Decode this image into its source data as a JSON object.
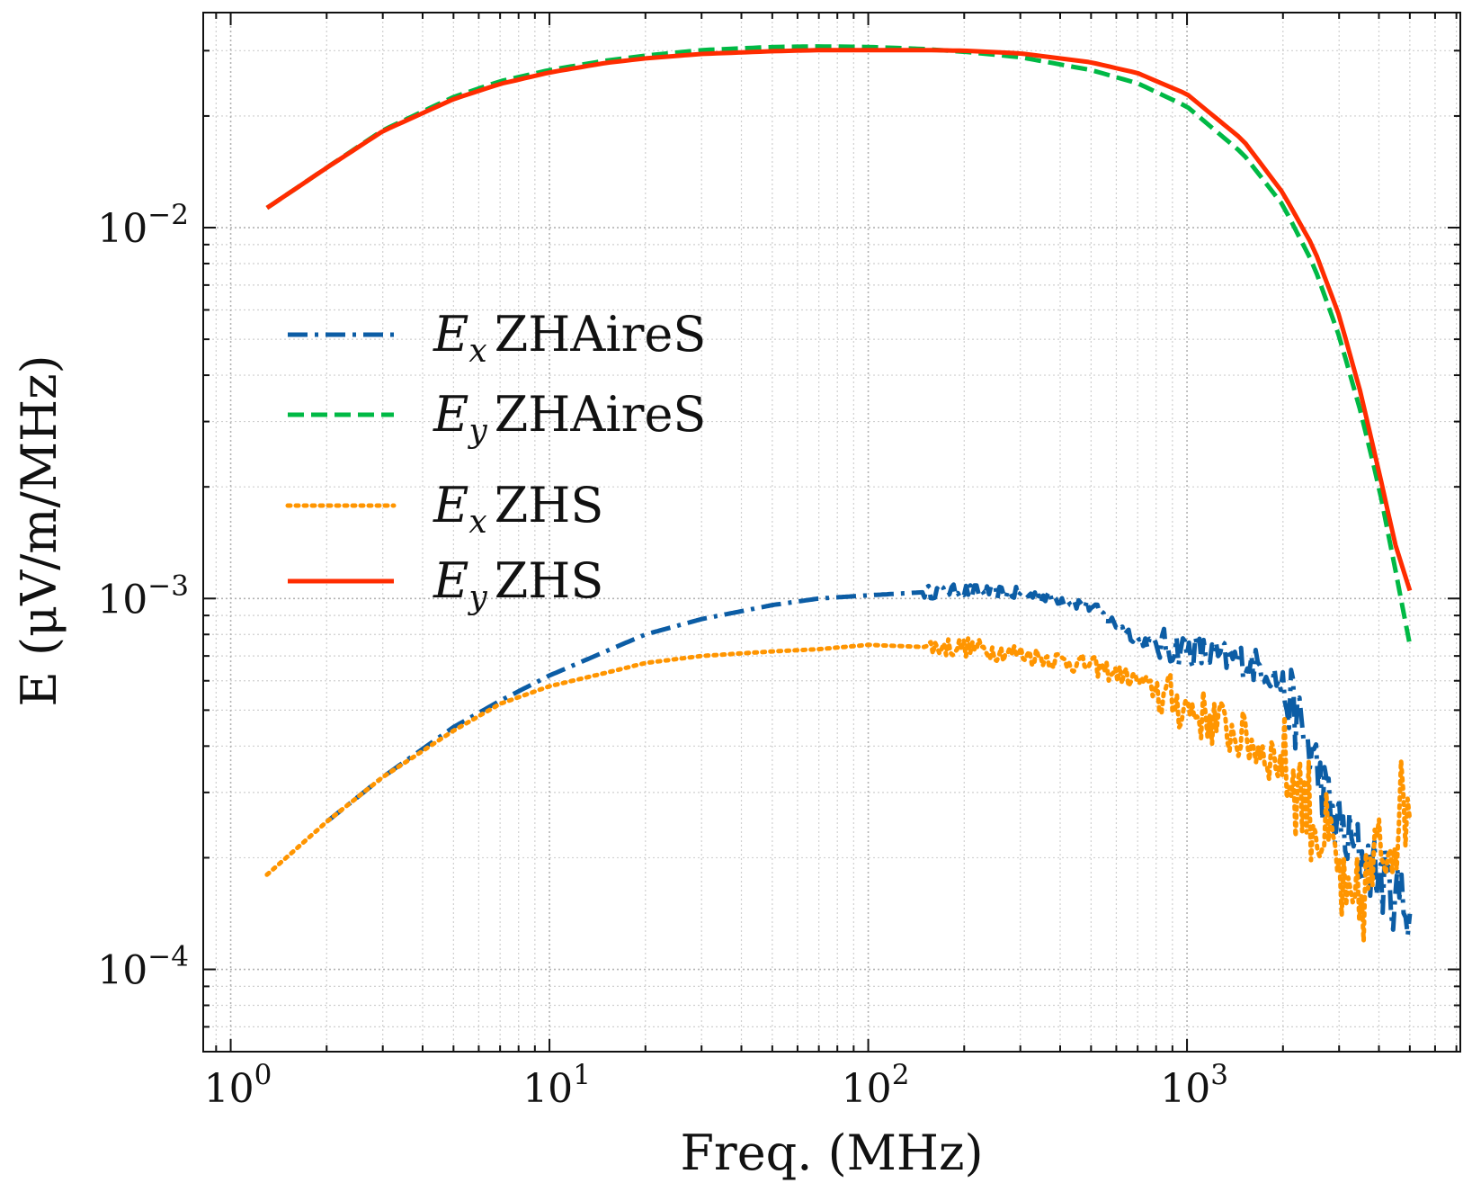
{
  "chart_data": {
    "type": "line",
    "title": "",
    "xlabel": "Freq. (MHz)",
    "ylabel": "E (μV/m/MHz)",
    "xscale": "log",
    "yscale": "log",
    "xlim": [
      0.82,
      7200
    ],
    "ylim": [
      6e-05,
      0.038
    ],
    "grid": true,
    "legend_position": "center-left",
    "x_ticks": [
      {
        "value": 1,
        "base": "10",
        "exp": "0"
      },
      {
        "value": 10,
        "base": "10",
        "exp": "1"
      },
      {
        "value": 100,
        "base": "10",
        "exp": "2"
      },
      {
        "value": 1000,
        "base": "10",
        "exp": "3"
      }
    ],
    "y_ticks": [
      {
        "value": 0.0001,
        "base": "10",
        "exp": "−4"
      },
      {
        "value": 0.001,
        "base": "10",
        "exp": "−3"
      },
      {
        "value": 0.01,
        "base": "10",
        "exp": "−2"
      }
    ],
    "series": [
      {
        "name": "Ex ZHAireS",
        "symbol": "E",
        "subscript": "x",
        "code": "ZHAireS",
        "color": "#0c5da5",
        "dash": "dashdot",
        "noise": 0.06,
        "x": [
          2,
          3,
          5,
          7,
          10,
          15,
          20,
          30,
          50,
          70,
          100,
          150,
          200,
          300,
          400,
          500,
          600,
          700,
          800,
          1000,
          1200,
          1500,
          1800,
          2000,
          2200,
          2500,
          2800,
          3200,
          3800,
          4400,
          5000
        ],
        "y": [
          0.00025,
          0.00033,
          0.00045,
          0.00053,
          0.00062,
          0.00072,
          0.0008,
          0.00088,
          0.00096,
          0.001,
          0.00102,
          0.00104,
          0.00105,
          0.00103,
          0.001,
          0.00095,
          0.00085,
          0.00078,
          0.00075,
          0.00073,
          0.0007,
          0.00068,
          0.00064,
          0.00058,
          0.00048,
          0.00037,
          0.00027,
          0.00022,
          0.00019,
          0.00016,
          0.00015
        ]
      },
      {
        "name": "Ey ZHAireS",
        "symbol": "E",
        "subscript": "y",
        "code": "ZHAireS",
        "color": "#00b945",
        "dash": "dashed",
        "noise": 0,
        "x": [
          1.3,
          2,
          3,
          5,
          7,
          10,
          15,
          20,
          30,
          50,
          70,
          100,
          150,
          200,
          300,
          500,
          700,
          1000,
          1500,
          2000,
          2500,
          3000,
          3500,
          4000,
          4500,
          5000
        ],
        "y": [
          0.0113,
          0.0145,
          0.0183,
          0.0225,
          0.0248,
          0.0266,
          0.0282,
          0.0291,
          0.0301,
          0.0307,
          0.0308,
          0.0307,
          0.0303,
          0.0298,
          0.0288,
          0.0266,
          0.0245,
          0.0212,
          0.0158,
          0.0115,
          0.0079,
          0.0051,
          0.0032,
          0.002,
          0.0012,
          0.00075
        ]
      },
      {
        "name": "Ex ZHS",
        "symbol": "E",
        "subscript": "x",
        "code": "ZHS",
        "color": "#ff9500",
        "dash": "dotted",
        "noise": 0.09,
        "x": [
          1.3,
          2,
          3,
          5,
          7,
          10,
          15,
          20,
          30,
          50,
          70,
          100,
          150,
          200,
          300,
          500,
          700,
          900,
          1200,
          1500,
          2000,
          2500,
          3000,
          3200,
          3600,
          4000,
          4500,
          5000
        ],
        "y": [
          0.00018,
          0.00025,
          0.00033,
          0.00044,
          0.00052,
          0.00058,
          0.00063,
          0.00067,
          0.0007,
          0.00072,
          0.00073,
          0.00075,
          0.00074,
          0.00074,
          0.00071,
          0.00066,
          0.0006,
          0.00053,
          0.00047,
          0.00042,
          0.00036,
          0.00026,
          0.00018,
          0.00013,
          0.00016,
          0.0002,
          0.00025,
          0.0003
        ]
      },
      {
        "name": "Ey ZHS",
        "symbol": "E",
        "subscript": "y",
        "code": "ZHS",
        "color": "#ff2c00",
        "dash": "solid",
        "noise": 0,
        "x": [
          1.3,
          2,
          3,
          5,
          7,
          10,
          15,
          20,
          30,
          50,
          70,
          100,
          150,
          200,
          300,
          500,
          700,
          1000,
          1500,
          2000,
          2500,
          3000,
          3500,
          4000,
          4500,
          5000
        ],
        "y": [
          0.0113,
          0.0145,
          0.0182,
          0.0222,
          0.0244,
          0.0262,
          0.0278,
          0.0286,
          0.0294,
          0.0299,
          0.0301,
          0.0301,
          0.0301,
          0.03,
          0.0295,
          0.0279,
          0.0261,
          0.0229,
          0.0172,
          0.0124,
          0.0088,
          0.0058,
          0.0036,
          0.0022,
          0.0014,
          0.00105
        ]
      }
    ]
  }
}
